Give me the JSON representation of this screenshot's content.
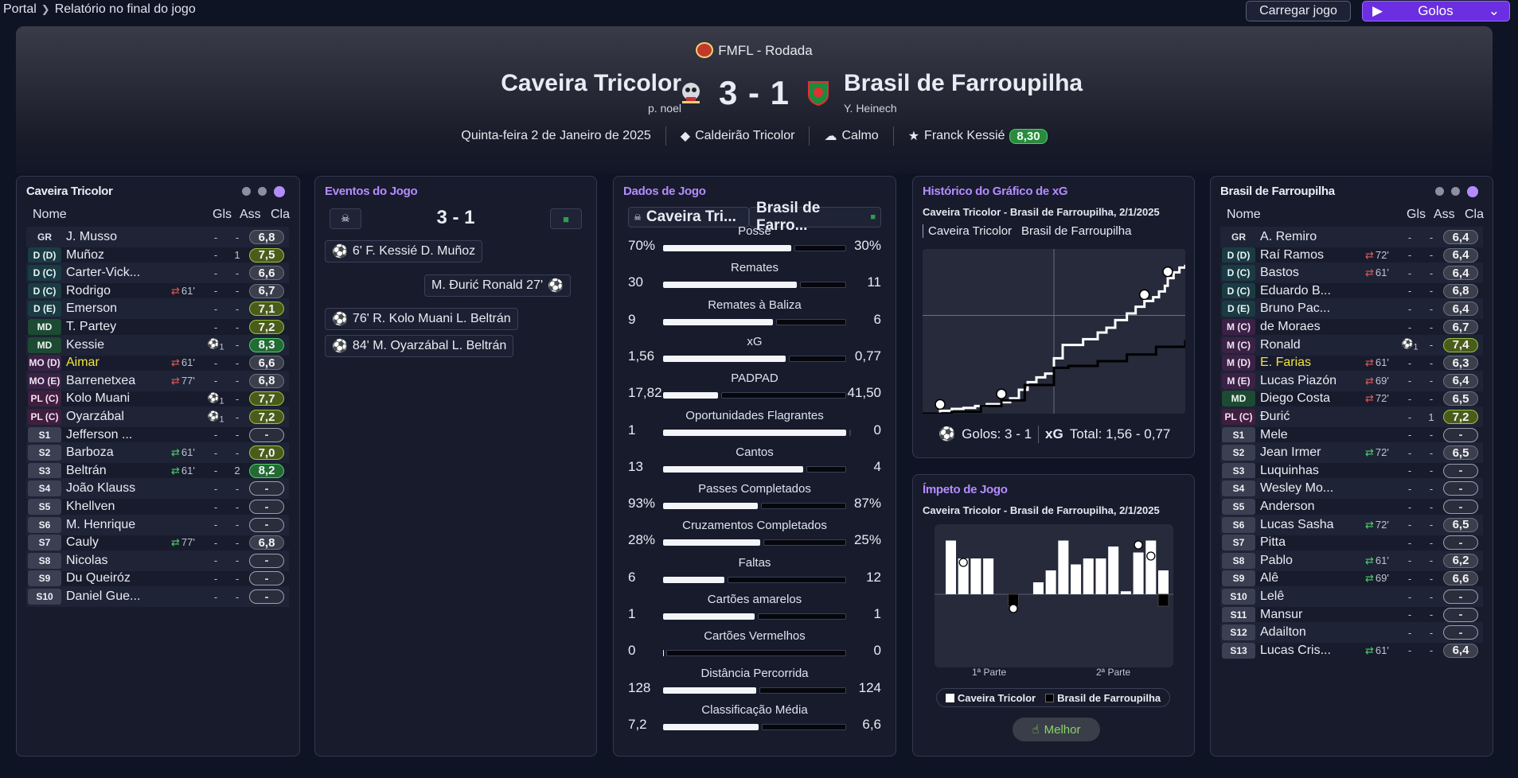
{
  "breadcrumb": {
    "root": "Portal",
    "current": "Relatório no final do jogo"
  },
  "toolbar": {
    "load_label": "Carregar jogo",
    "golos_label": "Golos"
  },
  "header": {
    "competition": "FMFL - Rodada",
    "home_team": "Caveira Tricolor",
    "away_team": "Brasil de Farroupilha",
    "home_manager": "p. noel",
    "away_manager": "Y. Heinech",
    "score": "3 - 1",
    "date": "Quinta-feira 2 de Janeiro de 2025",
    "stadium": "Caldeirão Tricolor",
    "weather": "Calmo",
    "motm": "Franck Kessié",
    "motm_rating": "8,30"
  },
  "home_panel": {
    "title": "Caveira Tricolor",
    "col_name": "Nome",
    "col_gls": "Gls",
    "col_ass": "Ass",
    "col_cla": "Cla",
    "rows": [
      {
        "pos": "GR",
        "name": "J. Musso",
        "sub": "",
        "gls": "-",
        "ass": "-",
        "cla": "6,8"
      },
      {
        "pos": "D (D)",
        "name": "Muñoz",
        "sub": "",
        "gls": "-",
        "ass": "1",
        "cla": "7,5"
      },
      {
        "pos": "D (C)",
        "name": "Carter-Vick...",
        "sub": "",
        "gls": "-",
        "ass": "-",
        "cla": "6,6"
      },
      {
        "pos": "D (C)",
        "name": "Rodrigo",
        "sub": "61'",
        "gls": "-",
        "ass": "-",
        "cla": "6,7"
      },
      {
        "pos": "D (E)",
        "name": "Emerson",
        "sub": "",
        "gls": "-",
        "ass": "-",
        "cla": "7,1"
      },
      {
        "pos": "MD",
        "name": "T. Partey",
        "sub": "",
        "gls": "-",
        "ass": "-",
        "cla": "7,2"
      },
      {
        "pos": "MD",
        "name": "Kessie",
        "sub": "",
        "gls": "1",
        "ass": "-",
        "cla": "8,3"
      },
      {
        "pos": "MO (D)",
        "name": "Aimar",
        "sub": "61'",
        "gls": "-",
        "ass": "-",
        "cla": "6,6"
      },
      {
        "pos": "MO (E)",
        "name": "Barrenetxea",
        "sub": "77'",
        "gls": "-",
        "ass": "-",
        "cla": "6,8"
      },
      {
        "pos": "PL (C)",
        "name": "Kolo Muani",
        "sub": "",
        "gls": "1",
        "ass": "-",
        "cla": "7,7"
      },
      {
        "pos": "PL (C)",
        "name": "Oyarzábal",
        "sub": "",
        "gls": "1",
        "ass": "-",
        "cla": "7,2"
      },
      {
        "pos": "S1",
        "name": "Jefferson ...",
        "sub": "",
        "gls": "-",
        "ass": "-",
        "cla": "-"
      },
      {
        "pos": "S2",
        "name": "Barboza",
        "sub": "61'",
        "gls": "-",
        "ass": "-",
        "cla": "7,0"
      },
      {
        "pos": "S3",
        "name": "Beltrán",
        "sub": "61'",
        "gls": "-",
        "ass": "2",
        "cla": "8,2"
      },
      {
        "pos": "S4",
        "name": "João Klauss",
        "sub": "",
        "gls": "-",
        "ass": "-",
        "cla": "-"
      },
      {
        "pos": "S5",
        "name": "Khellven",
        "sub": "",
        "gls": "-",
        "ass": "-",
        "cla": "-"
      },
      {
        "pos": "S6",
        "name": "M. Henrique",
        "sub": "",
        "gls": "-",
        "ass": "-",
        "cla": "-"
      },
      {
        "pos": "S7",
        "name": "Cauly",
        "sub": "77'",
        "gls": "-",
        "ass": "-",
        "cla": "6,8"
      },
      {
        "pos": "S8",
        "name": "Nicolas",
        "sub": "",
        "gls": "-",
        "ass": "-",
        "cla": "-"
      },
      {
        "pos": "S9",
        "name": "Du Queiróz",
        "sub": "",
        "gls": "-",
        "ass": "-",
        "cla": "-"
      },
      {
        "pos": "S10",
        "name": "Daniel Gue...",
        "sub": "",
        "gls": "-",
        "ass": "-",
        "cla": "-"
      }
    ]
  },
  "away_panel": {
    "title": "Brasil de Farroupilha",
    "col_name": "Nome",
    "col_gls": "Gls",
    "col_ass": "Ass",
    "col_cla": "Cla",
    "rows": [
      {
        "pos": "GR",
        "name": "A. Remiro",
        "sub": "",
        "gls": "-",
        "ass": "-",
        "cla": "6,4"
      },
      {
        "pos": "D (D)",
        "name": "Raí Ramos",
        "sub": "72'",
        "gls": "-",
        "ass": "-",
        "cla": "6,4"
      },
      {
        "pos": "D (C)",
        "name": "Bastos",
        "sub": "61'",
        "gls": "-",
        "ass": "-",
        "cla": "6,4"
      },
      {
        "pos": "D (C)",
        "name": "Eduardo B...",
        "sub": "",
        "gls": "-",
        "ass": "-",
        "cla": "6,8"
      },
      {
        "pos": "D (E)",
        "name": "Bruno Pac...",
        "sub": "",
        "gls": "-",
        "ass": "-",
        "cla": "6,4"
      },
      {
        "pos": "M (C)",
        "name": "de Moraes",
        "sub": "",
        "gls": "-",
        "ass": "-",
        "cla": "6,7"
      },
      {
        "pos": "M (C)",
        "name": "Ronald",
        "sub": "",
        "gls": "1",
        "ass": "-",
        "cla": "7,4"
      },
      {
        "pos": "M (D)",
        "name": "E. Farias",
        "sub": "61'",
        "gls": "-",
        "ass": "-",
        "cla": "6,3"
      },
      {
        "pos": "M (E)",
        "name": "Lucas Piazón",
        "sub": "69'",
        "gls": "-",
        "ass": "-",
        "cla": "6,4"
      },
      {
        "pos": "MD",
        "name": "Diego Costa",
        "sub": "72'",
        "gls": "-",
        "ass": "-",
        "cla": "6,5"
      },
      {
        "pos": "PL (C)",
        "name": "Đurić",
        "sub": "",
        "gls": "-",
        "ass": "1",
        "cla": "7,2"
      },
      {
        "pos": "S1",
        "name": "Mele",
        "sub": "",
        "gls": "-",
        "ass": "-",
        "cla": "-"
      },
      {
        "pos": "S2",
        "name": "Jean Irmer",
        "sub": "72'",
        "gls": "-",
        "ass": "-",
        "cla": "6,5"
      },
      {
        "pos": "S3",
        "name": "Luquinhas",
        "sub": "",
        "gls": "-",
        "ass": "-",
        "cla": "-"
      },
      {
        "pos": "S4",
        "name": "Wesley Mo...",
        "sub": "",
        "gls": "-",
        "ass": "-",
        "cla": "-"
      },
      {
        "pos": "S5",
        "name": "Anderson",
        "sub": "",
        "gls": "-",
        "ass": "-",
        "cla": "-"
      },
      {
        "pos": "S6",
        "name": "Lucas Sasha",
        "sub": "72'",
        "gls": "-",
        "ass": "-",
        "cla": "6,5"
      },
      {
        "pos": "S7",
        "name": "Pitta",
        "sub": "",
        "gls": "-",
        "ass": "-",
        "cla": "-"
      },
      {
        "pos": "S8",
        "name": "Pablo",
        "sub": "61'",
        "gls": "-",
        "ass": "-",
        "cla": "6,2"
      },
      {
        "pos": "S9",
        "name": "Alê",
        "sub": "69'",
        "gls": "-",
        "ass": "-",
        "cla": "6,6"
      },
      {
        "pos": "S10",
        "name": "Lelê",
        "sub": "",
        "gls": "-",
        "ass": "-",
        "cla": "-"
      },
      {
        "pos": "S11",
        "name": "Mansur",
        "sub": "",
        "gls": "-",
        "ass": "-",
        "cla": "-"
      },
      {
        "pos": "S12",
        "name": "Adailton",
        "sub": "",
        "gls": "-",
        "ass": "-",
        "cla": "-"
      },
      {
        "pos": "S13",
        "name": "Lucas Cris...",
        "sub": "61'",
        "gls": "-",
        "ass": "-",
        "cla": "6,4"
      }
    ]
  },
  "events": {
    "title": "Eventos do Jogo",
    "score": "3 - 1",
    "items": [
      {
        "text": "6'  F. Kessié  D. Muñoz",
        "side": "home"
      },
      {
        "text": "M. Đurić  Ronald  27'",
        "side": "away"
      },
      {
        "text": "76'  R. Kolo Muani  L. Beltrán",
        "side": "home"
      },
      {
        "text": "84'  M. Oyarzábal  L. Beltrán",
        "side": "home"
      }
    ]
  },
  "match_stats": {
    "title": "Dados de Jogo",
    "home_short": "Caveira Tri...",
    "away_short": "Brasil de Farro...",
    "rows": [
      {
        "label": "Posse",
        "home": "70%",
        "away": "30%",
        "hv": 70,
        "av": 30
      },
      {
        "label": "Remates",
        "home": "30",
        "away": "11",
        "hv": 30,
        "av": 11
      },
      {
        "label": "Remates à Baliza",
        "home": "9",
        "away": "6",
        "hv": 9,
        "av": 6
      },
      {
        "label": "xG",
        "home": "1,56",
        "away": "0,77",
        "hv": 1.56,
        "av": 0.77
      },
      {
        "label": "PADPAD",
        "home": "17,82",
        "away": "41,50",
        "hv": 17.82,
        "av": 41.5
      },
      {
        "label": "Oportunidades Flagrantes",
        "home": "1",
        "away": "0",
        "hv": 1,
        "av": 0
      },
      {
        "label": "Cantos",
        "home": "13",
        "away": "4",
        "hv": 13,
        "av": 4
      },
      {
        "label": "Passes Completados",
        "home": "93%",
        "away": "87%",
        "hv": 93,
        "av": 87
      },
      {
        "label": "Cruzamentos Completados",
        "home": "28%",
        "away": "25%",
        "hv": 28,
        "av": 25
      },
      {
        "label": "Faltas",
        "home": "6",
        "away": "12",
        "hv": 6,
        "av": 12
      },
      {
        "label": "Cartões amarelos",
        "home": "1",
        "away": "1",
        "hv": 1,
        "av": 1
      },
      {
        "label": "Cartões Vermelhos",
        "home": "0",
        "away": "0",
        "hv": 0,
        "av": 0
      },
      {
        "label": "Distância Percorrida",
        "home": "128",
        "away": "124",
        "hv": 128,
        "av": 124
      },
      {
        "label": "Classificação Média",
        "home": "7,2",
        "away": "6,6",
        "hv": 7.2,
        "av": 6.6
      }
    ]
  },
  "xg_chart": {
    "title": "Histórico do Gráfico de xG",
    "subtitle": "Caveira Tricolor - Brasil de Farroupilha, 2/1/2025",
    "tab_home": "Caveira Tricolor",
    "tab_away": "Brasil de Farroupilha",
    "goals_label": "Golos: 3 - 1",
    "xg_label": "xG",
    "xg_total": "Total: 1,56 - 0,77"
  },
  "momentum": {
    "title": "Ímpeto de Jogo",
    "subtitle": "Caveira Tricolor - Brasil de Farroupilha, 2/1/2025",
    "half1": "1ª Parte",
    "half2": "2ª Parte",
    "legend_home": "Caveira Tricolor",
    "legend_away": "Brasil de Farroupilha",
    "best_label": "Melhor"
  },
  "chart_data": [
    {
      "type": "line",
      "series": [
        {
          "name": "Caveira Tricolor",
          "x": [
            0,
            6,
            10,
            14,
            18,
            22,
            27,
            30,
            33,
            36,
            39,
            42,
            45,
            48,
            55,
            60,
            63,
            66,
            70,
            73,
            76,
            79,
            81,
            83,
            84,
            86,
            88,
            90
          ],
          "y": [
            0,
            0.03,
            0.05,
            0.06,
            0.08,
            0.1,
            0.12,
            0.16,
            0.25,
            0.33,
            0.38,
            0.42,
            0.58,
            0.72,
            0.78,
            0.85,
            0.9,
            0.98,
            1.05,
            1.12,
            1.18,
            1.22,
            1.28,
            1.34,
            1.42,
            1.48,
            1.53,
            1.56
          ]
        },
        {
          "name": "Brasil de Farroupilha",
          "x": [
            0,
            10,
            20,
            27,
            35,
            45,
            50,
            60,
            70,
            80,
            90
          ],
          "y": [
            0,
            0.02,
            0.08,
            0.14,
            0.3,
            0.48,
            0.5,
            0.55,
            0.62,
            0.7,
            0.77
          ]
        }
      ],
      "goals": [
        {
          "team": "Caveira Tricolor",
          "minute": 6
        },
        {
          "team": "Brasil de Farroupilha",
          "minute": 27
        },
        {
          "team": "Caveira Tricolor",
          "minute": 76
        },
        {
          "team": "Caveira Tricolor",
          "minute": 84
        }
      ]
    },
    {
      "type": "bar",
      "categories": [
        "1",
        "2",
        "3",
        "4",
        "5",
        "6",
        "7",
        "8",
        "9",
        "10",
        "11",
        "12",
        "13",
        "14",
        "15",
        "16",
        "17",
        "18"
      ],
      "series": [
        {
          "name": "Caveira Tricolor",
          "values": [
            9,
            6,
            6,
            6,
            0,
            0,
            0,
            2,
            4,
            9,
            5,
            6,
            6,
            8,
            0.5,
            7,
            9,
            4
          ]
        },
        {
          "name": "Brasil de Farroupilha",
          "values": [
            0,
            0,
            0,
            0,
            0,
            2,
            0,
            0,
            0,
            0,
            0,
            0,
            0,
            0,
            0,
            0,
            0,
            2
          ]
        }
      ]
    }
  ]
}
